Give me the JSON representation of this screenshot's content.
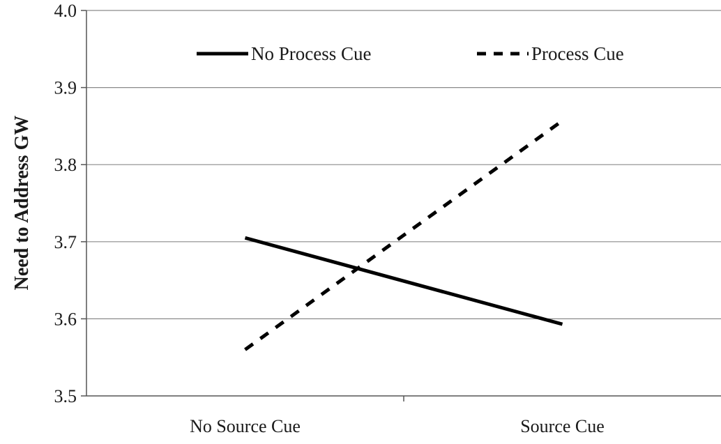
{
  "chart_data": {
    "type": "line",
    "title": "",
    "xlabel": "",
    "ylabel": "Need to Address GW",
    "categories": [
      "No Source Cue",
      "Source Cue"
    ],
    "ylim": [
      3.5,
      4.0
    ],
    "yticks": [
      "3.5",
      "3.6",
      "3.7",
      "3.8",
      "3.9",
      "4.0"
    ],
    "ytick_values": [
      3.5,
      3.6,
      3.7,
      3.8,
      3.9,
      4.0
    ],
    "grid": true,
    "legend_position": "top",
    "series": [
      {
        "name": "No Process Cue",
        "values": [
          3.705,
          3.593
        ],
        "style": "solid",
        "color": "#000000"
      },
      {
        "name": "Process Cue",
        "values": [
          3.56,
          3.857
        ],
        "style": "dashed",
        "color": "#000000"
      }
    ]
  }
}
